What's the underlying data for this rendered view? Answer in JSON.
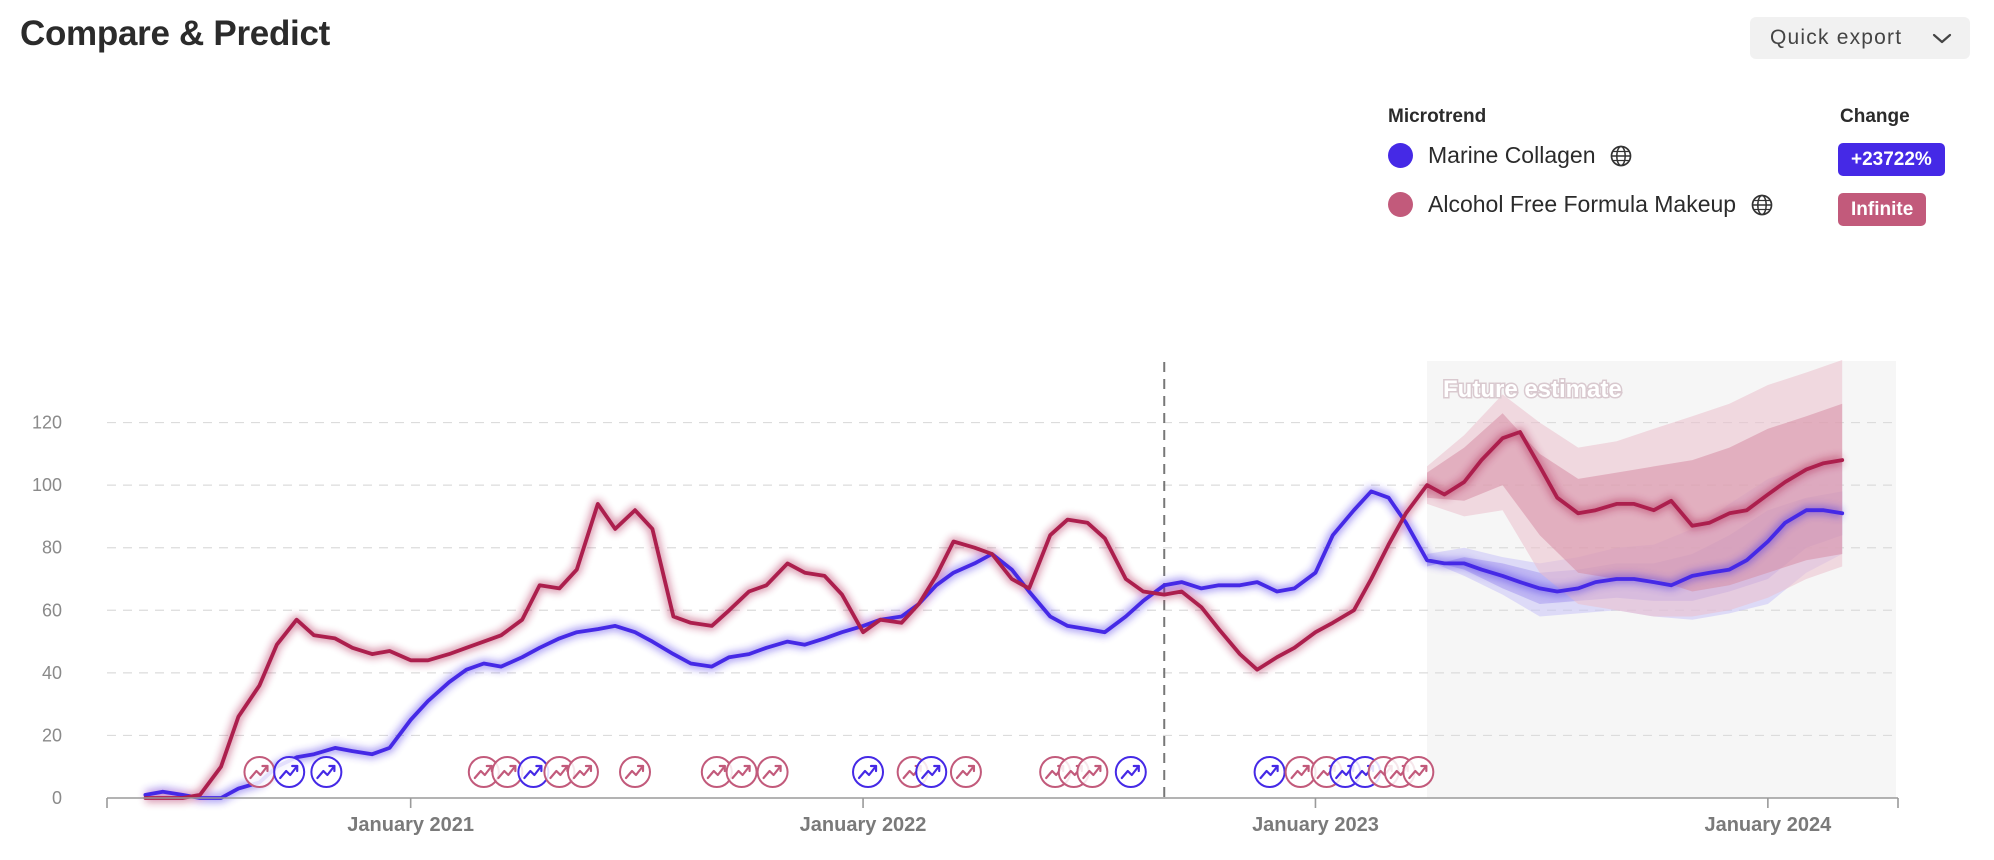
{
  "header": {
    "title": "Compare & Predict",
    "export_label": "Quick export"
  },
  "legend": {
    "microtrend_header": "Microtrend",
    "change_header": "Change",
    "items": [
      {
        "name": "Marine Collagen",
        "change": "+23722%",
        "color": "#4529e6"
      },
      {
        "name": "Alcohol Free Formula Makeup",
        "change": "Infinite",
        "color": "#c25a7b"
      }
    ]
  },
  "chart_data": {
    "type": "line",
    "ylim": [
      0,
      140
    ],
    "yticks": [
      "0",
      "20",
      "40",
      "60",
      "80",
      "100",
      "120"
    ],
    "x_range": [
      "2020-05-01",
      "2024-04-15"
    ],
    "xticks": [
      {
        "date": "2021-01-01",
        "label": "January 2021"
      },
      {
        "date": "2022-01-01",
        "label": "January 2022"
      },
      {
        "date": "2023-01-01",
        "label": "January 2023"
      },
      {
        "date": "2024-01-01",
        "label": "January 2024"
      }
    ],
    "divider_date": "2022-09-01",
    "future_start": "2023-04-01",
    "future_label": "Future estimate",
    "grid": true,
    "series": [
      {
        "name": "Marine Collagen",
        "color": "#4529e6",
        "points": [
          [
            "2020-06-01",
            1
          ],
          [
            "2020-06-15",
            2
          ],
          [
            "2020-07-01",
            1
          ],
          [
            "2020-07-15",
            0
          ],
          [
            "2020-08-01",
            0
          ],
          [
            "2020-08-15",
            3
          ],
          [
            "2020-09-01",
            5
          ],
          [
            "2020-09-15",
            10
          ],
          [
            "2020-10-01",
            13
          ],
          [
            "2020-10-15",
            14
          ],
          [
            "2020-11-01",
            16
          ],
          [
            "2020-11-15",
            15
          ],
          [
            "2020-12-01",
            14
          ],
          [
            "2020-12-15",
            16
          ],
          [
            "2021-01-01",
            25
          ],
          [
            "2021-01-15",
            31
          ],
          [
            "2021-02-01",
            37
          ],
          [
            "2021-02-15",
            41
          ],
          [
            "2021-03-01",
            43
          ],
          [
            "2021-03-15",
            42
          ],
          [
            "2021-04-01",
            45
          ],
          [
            "2021-04-15",
            48
          ],
          [
            "2021-05-01",
            51
          ],
          [
            "2021-05-15",
            53
          ],
          [
            "2021-06-01",
            54
          ],
          [
            "2021-06-15",
            55
          ],
          [
            "2021-07-01",
            53
          ],
          [
            "2021-07-15",
            50
          ],
          [
            "2021-08-01",
            46
          ],
          [
            "2021-08-15",
            43
          ],
          [
            "2021-09-01",
            42
          ],
          [
            "2021-09-15",
            45
          ],
          [
            "2021-10-01",
            46
          ],
          [
            "2021-10-15",
            48
          ],
          [
            "2021-11-01",
            50
          ],
          [
            "2021-11-15",
            49
          ],
          [
            "2021-12-01",
            51
          ],
          [
            "2021-12-15",
            53
          ],
          [
            "2022-01-01",
            55
          ],
          [
            "2022-01-15",
            57
          ],
          [
            "2022-02-01",
            58
          ],
          [
            "2022-02-15",
            62
          ],
          [
            "2022-03-01",
            68
          ],
          [
            "2022-03-15",
            72
          ],
          [
            "2022-04-01",
            75
          ],
          [
            "2022-04-15",
            78
          ],
          [
            "2022-05-01",
            73
          ],
          [
            "2022-05-15",
            66
          ],
          [
            "2022-06-01",
            58
          ],
          [
            "2022-06-15",
            55
          ],
          [
            "2022-07-01",
            54
          ],
          [
            "2022-07-15",
            53
          ],
          [
            "2022-08-01",
            58
          ],
          [
            "2022-08-15",
            63
          ],
          [
            "2022-09-01",
            68
          ],
          [
            "2022-09-15",
            69
          ],
          [
            "2022-10-01",
            67
          ],
          [
            "2022-10-15",
            68
          ],
          [
            "2022-11-01",
            68
          ],
          [
            "2022-11-15",
            69
          ],
          [
            "2022-12-01",
            66
          ],
          [
            "2022-12-15",
            67
          ],
          [
            "2023-01-01",
            72
          ],
          [
            "2023-01-15",
            84
          ],
          [
            "2023-02-01",
            92
          ],
          [
            "2023-02-15",
            98
          ],
          [
            "2023-03-01",
            96
          ],
          [
            "2023-03-15",
            88
          ],
          [
            "2023-04-01",
            76
          ],
          [
            "2023-04-15",
            75
          ],
          [
            "2023-05-01",
            75
          ],
          [
            "2023-05-15",
            73
          ],
          [
            "2023-06-01",
            71
          ],
          [
            "2023-06-15",
            69
          ],
          [
            "2023-07-01",
            67
          ],
          [
            "2023-07-15",
            66
          ],
          [
            "2023-08-01",
            67
          ],
          [
            "2023-08-15",
            69
          ],
          [
            "2023-09-01",
            70
          ],
          [
            "2023-09-15",
            70
          ],
          [
            "2023-10-01",
            69
          ],
          [
            "2023-10-15",
            68
          ],
          [
            "2023-11-01",
            71
          ],
          [
            "2023-11-15",
            72
          ],
          [
            "2023-12-01",
            73
          ],
          [
            "2023-12-15",
            76
          ],
          [
            "2024-01-01",
            82
          ],
          [
            "2024-01-15",
            88
          ],
          [
            "2024-02-01",
            92
          ],
          [
            "2024-02-15",
            92
          ],
          [
            "2024-03-01",
            91
          ]
        ]
      },
      {
        "name": "Alcohol Free Formula Makeup",
        "color": "#ac1f4d",
        "points": [
          [
            "2020-06-01",
            0
          ],
          [
            "2020-06-15",
            0
          ],
          [
            "2020-07-01",
            0
          ],
          [
            "2020-07-15",
            1
          ],
          [
            "2020-08-01",
            10
          ],
          [
            "2020-08-15",
            26
          ],
          [
            "2020-09-01",
            36
          ],
          [
            "2020-09-15",
            49
          ],
          [
            "2020-10-01",
            57
          ],
          [
            "2020-10-15",
            52
          ],
          [
            "2020-11-01",
            51
          ],
          [
            "2020-11-15",
            48
          ],
          [
            "2020-12-01",
            46
          ],
          [
            "2020-12-15",
            47
          ],
          [
            "2021-01-01",
            44
          ],
          [
            "2021-01-15",
            44
          ],
          [
            "2021-02-01",
            46
          ],
          [
            "2021-02-15",
            48
          ],
          [
            "2021-03-01",
            50
          ],
          [
            "2021-03-15",
            52
          ],
          [
            "2021-04-01",
            57
          ],
          [
            "2021-04-15",
            68
          ],
          [
            "2021-05-01",
            67
          ],
          [
            "2021-05-15",
            73
          ],
          [
            "2021-06-01",
            94
          ],
          [
            "2021-06-15",
            86
          ],
          [
            "2021-07-01",
            92
          ],
          [
            "2021-07-15",
            86
          ],
          [
            "2021-08-01",
            58
          ],
          [
            "2021-08-15",
            56
          ],
          [
            "2021-09-01",
            55
          ],
          [
            "2021-09-15",
            60
          ],
          [
            "2021-10-01",
            66
          ],
          [
            "2021-10-15",
            68
          ],
          [
            "2021-11-01",
            75
          ],
          [
            "2021-11-15",
            72
          ],
          [
            "2021-12-01",
            71
          ],
          [
            "2021-12-15",
            65
          ],
          [
            "2022-01-01",
            53
          ],
          [
            "2022-01-15",
            57
          ],
          [
            "2022-02-01",
            56
          ],
          [
            "2022-02-15",
            62
          ],
          [
            "2022-03-01",
            71
          ],
          [
            "2022-03-15",
            82
          ],
          [
            "2022-04-01",
            80
          ],
          [
            "2022-04-15",
            78
          ],
          [
            "2022-05-01",
            70
          ],
          [
            "2022-05-15",
            67
          ],
          [
            "2022-06-01",
            84
          ],
          [
            "2022-06-15",
            89
          ],
          [
            "2022-07-01",
            88
          ],
          [
            "2022-07-15",
            83
          ],
          [
            "2022-08-01",
            70
          ],
          [
            "2022-08-15",
            66
          ],
          [
            "2022-09-01",
            65
          ],
          [
            "2022-09-15",
            66
          ],
          [
            "2022-10-01",
            61
          ],
          [
            "2022-10-15",
            54
          ],
          [
            "2022-11-01",
            46
          ],
          [
            "2022-11-15",
            41
          ],
          [
            "2022-12-01",
            45
          ],
          [
            "2022-12-15",
            48
          ],
          [
            "2023-01-01",
            53
          ],
          [
            "2023-01-15",
            56
          ],
          [
            "2023-02-01",
            60
          ],
          [
            "2023-02-15",
            70
          ],
          [
            "2023-03-01",
            81
          ],
          [
            "2023-03-15",
            91
          ],
          [
            "2023-04-01",
            100
          ],
          [
            "2023-04-15",
            97
          ],
          [
            "2023-05-01",
            101
          ],
          [
            "2023-05-15",
            108
          ],
          [
            "2023-06-01",
            115
          ],
          [
            "2023-06-15",
            117
          ],
          [
            "2023-07-01",
            106
          ],
          [
            "2023-07-15",
            96
          ],
          [
            "2023-08-01",
            91
          ],
          [
            "2023-08-15",
            92
          ],
          [
            "2023-09-01",
            94
          ],
          [
            "2023-09-15",
            94
          ],
          [
            "2023-10-01",
            92
          ],
          [
            "2023-10-15",
            95
          ],
          [
            "2023-11-01",
            87
          ],
          [
            "2023-11-15",
            88
          ],
          [
            "2023-12-01",
            91
          ],
          [
            "2023-12-15",
            92
          ],
          [
            "2024-01-01",
            97
          ],
          [
            "2024-01-15",
            101
          ],
          [
            "2024-02-01",
            105
          ],
          [
            "2024-02-15",
            107
          ],
          [
            "2024-03-01",
            108
          ]
        ]
      }
    ],
    "bands": [
      {
        "series": "Marine Collagen",
        "points": [
          [
            "2023-04-01",
            76,
            76,
            74,
            78
          ],
          [
            "2023-05-01",
            73,
            71,
            77,
            80
          ],
          [
            "2023-06-01",
            67,
            65,
            75,
            77
          ],
          [
            "2023-07-01",
            62,
            58,
            72,
            75
          ],
          [
            "2023-08-01",
            63,
            59,
            73,
            77
          ],
          [
            "2023-09-01",
            64,
            60,
            75,
            80
          ],
          [
            "2023-10-01",
            63,
            58,
            75,
            81
          ],
          [
            "2023-11-01",
            63,
            57,
            78,
            86
          ],
          [
            "2023-12-01",
            66,
            59,
            84,
            94
          ],
          [
            "2024-01-01",
            70,
            62,
            92,
            102
          ],
          [
            "2024-02-01",
            80,
            72,
            96,
            106
          ],
          [
            "2024-03-01",
            84,
            78,
            98,
            108
          ]
        ]
      },
      {
        "series": "Alcohol Free Formula Makeup",
        "points": [
          [
            "2023-04-01",
            96,
            94,
            104,
            106
          ],
          [
            "2023-05-01",
            95,
            90,
            112,
            116
          ],
          [
            "2023-06-01",
            100,
            92,
            123,
            129
          ],
          [
            "2023-07-01",
            84,
            72,
            110,
            120
          ],
          [
            "2023-08-01",
            72,
            62,
            102,
            112
          ],
          [
            "2023-09-01",
            70,
            60,
            104,
            114
          ],
          [
            "2023-10-01",
            70,
            58,
            106,
            118
          ],
          [
            "2023-11-01",
            66,
            58,
            108,
            122
          ],
          [
            "2023-12-01",
            68,
            60,
            112,
            126
          ],
          [
            "2024-01-01",
            72,
            64,
            118,
            132
          ],
          [
            "2024-02-01",
            76,
            70,
            122,
            136
          ],
          [
            "2024-03-01",
            78,
            74,
            126,
            140
          ]
        ]
      }
    ],
    "events": [
      {
        "date": "2020-09-01",
        "series": "Alcohol Free Formula Makeup"
      },
      {
        "date": "2020-09-25",
        "series": "Marine Collagen"
      },
      {
        "date": "2020-10-25",
        "series": "Marine Collagen"
      },
      {
        "date": "2021-03-01",
        "series": "Alcohol Free Formula Makeup"
      },
      {
        "date": "2021-03-20",
        "series": "Alcohol Free Formula Makeup"
      },
      {
        "date": "2021-04-10",
        "series": "Marine Collagen"
      },
      {
        "date": "2021-05-01",
        "series": "Alcohol Free Formula Makeup"
      },
      {
        "date": "2021-05-20",
        "series": "Alcohol Free Formula Makeup"
      },
      {
        "date": "2021-07-01",
        "series": "Alcohol Free Formula Makeup"
      },
      {
        "date": "2021-09-05",
        "series": "Alcohol Free Formula Makeup"
      },
      {
        "date": "2021-09-25",
        "series": "Alcohol Free Formula Makeup"
      },
      {
        "date": "2021-10-20",
        "series": "Alcohol Free Formula Makeup"
      },
      {
        "date": "2022-01-05",
        "series": "Marine Collagen"
      },
      {
        "date": "2022-02-10",
        "series": "Alcohol Free Formula Makeup"
      },
      {
        "date": "2022-02-25",
        "series": "Marine Collagen"
      },
      {
        "date": "2022-03-25",
        "series": "Alcohol Free Formula Makeup"
      },
      {
        "date": "2022-06-05",
        "series": "Alcohol Free Formula Makeup"
      },
      {
        "date": "2022-06-20",
        "series": "Alcohol Free Formula Makeup"
      },
      {
        "date": "2022-07-05",
        "series": "Alcohol Free Formula Makeup"
      },
      {
        "date": "2022-08-05",
        "series": "Marine Collagen"
      },
      {
        "date": "2022-11-25",
        "series": "Marine Collagen"
      },
      {
        "date": "2022-12-20",
        "series": "Alcohol Free Formula Makeup"
      },
      {
        "date": "2023-01-10",
        "series": "Alcohol Free Formula Makeup"
      },
      {
        "date": "2023-01-25",
        "series": "Marine Collagen"
      },
      {
        "date": "2023-02-10",
        "series": "Marine Collagen"
      },
      {
        "date": "2023-02-25",
        "series": "Alcohol Free Formula Makeup"
      },
      {
        "date": "2023-03-10",
        "series": "Alcohol Free Formula Makeup"
      },
      {
        "date": "2023-03-25",
        "series": "Alcohol Free Formula Makeup"
      }
    ]
  }
}
